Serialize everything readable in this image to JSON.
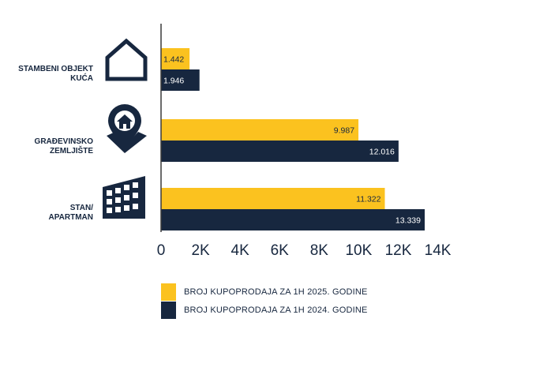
{
  "chart_data": {
    "type": "bar",
    "orientation": "horizontal",
    "categories": [
      [
        "STAMBENI OBJEKT",
        "KUĆA"
      ],
      [
        "GRAĐEVINSKO",
        "ZEMLJIŠTE"
      ],
      [
        "STAN/",
        "APARTMAN"
      ]
    ],
    "category_icons": [
      "house-icon",
      "location-pin-house-icon",
      "apartment-building-icon"
    ],
    "series": [
      {
        "name": "BROJ KUPOPRODAJA ZA 1H 2025. GODINE",
        "values": [
          1442,
          9987,
          11322
        ],
        "labels": [
          "1.442",
          "9.987",
          "11.322"
        ],
        "color": "#fbc21f",
        "label_color": "#17273f"
      },
      {
        "name": "BROJ KUPOPRODAJA ZA 1H 2024. GODINE",
        "values": [
          1946,
          12016,
          13339
        ],
        "labels": [
          "1.946",
          "12.016",
          "13.339"
        ],
        "color": "#17273f",
        "label_color": "#ffffff"
      }
    ],
    "xticks": [
      {
        "value": 0,
        "label": "0"
      },
      {
        "value": 2000,
        "label": "2K"
      },
      {
        "value": 4000,
        "label": "4K"
      },
      {
        "value": 6000,
        "label": "6K"
      },
      {
        "value": 8000,
        "label": "8K"
      },
      {
        "value": 10000,
        "label": "10K"
      },
      {
        "value": 12000,
        "label": "12K"
      },
      {
        "value": 14000,
        "label": "14K"
      }
    ],
    "xlim": [
      0,
      14000
    ],
    "grid": false,
    "legend_position": "bottom"
  }
}
